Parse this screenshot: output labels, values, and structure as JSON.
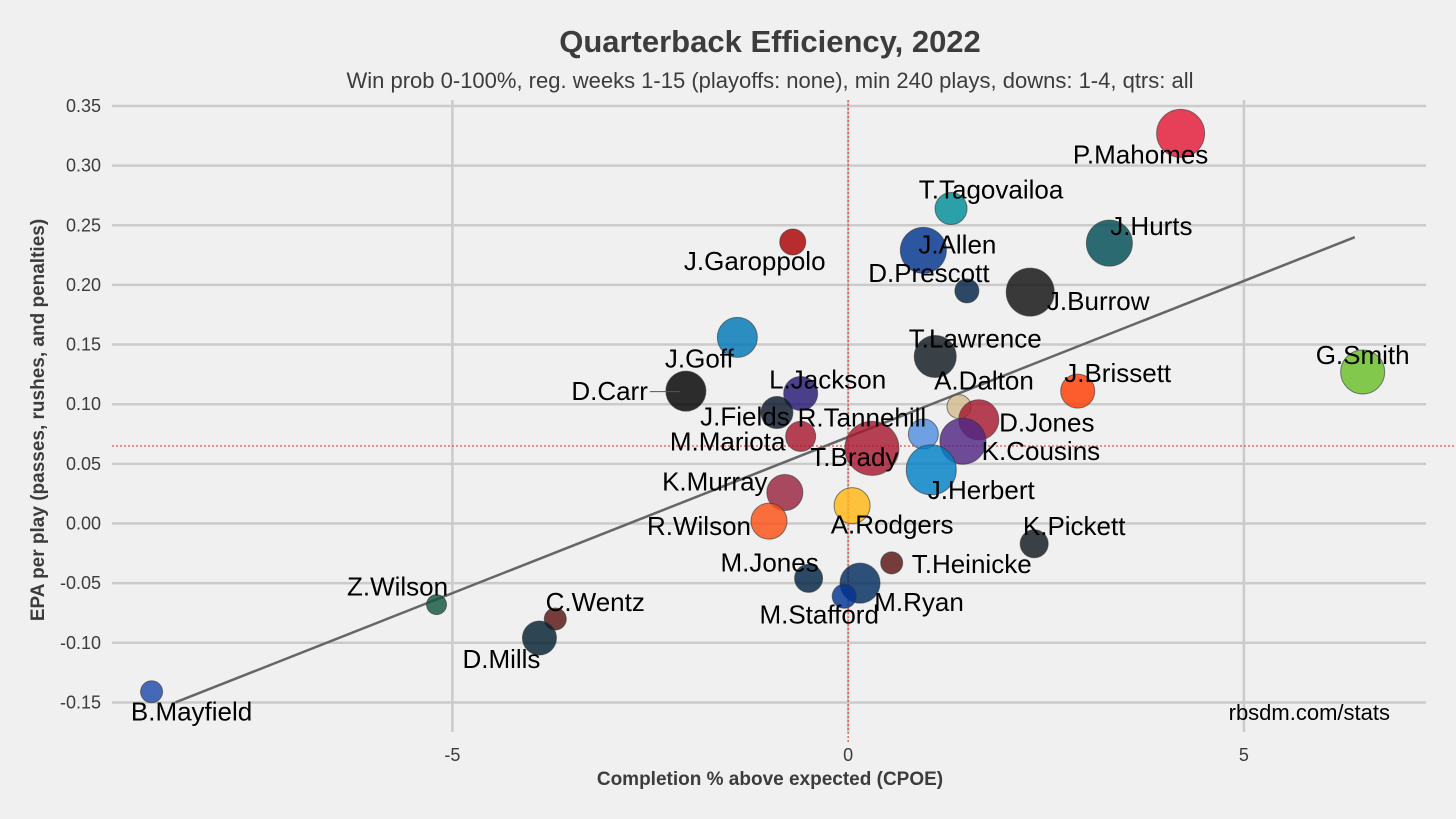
{
  "chart_data": {
    "type": "scatter",
    "title": "Quarterback Efficiency, 2022",
    "subtitle": "Win prob 0-100%, reg. weeks 1-15 (playoffs: none), min 240 plays, downs: 1-4, qtrs: all",
    "xlabel": "Completion % above expected (CPOE)",
    "ylabel": "EPA per play (passes, rushes, and penalties)",
    "source": "rbsdm.com/stats",
    "xlim": [
      -9.3,
      7.3
    ],
    "ylim": [
      -0.158,
      0.355
    ],
    "xticks": [
      {
        "value": -5,
        "label": "-5"
      },
      {
        "value": 0,
        "label": "0"
      },
      {
        "value": 5,
        "label": "5"
      }
    ],
    "yticks": [
      {
        "value": 0.35,
        "label": "0.35"
      },
      {
        "value": 0.3,
        "label": "0.30"
      },
      {
        "value": 0.25,
        "label": "0.25"
      },
      {
        "value": 0.2,
        "label": "0.20"
      },
      {
        "value": 0.15,
        "label": "0.15"
      },
      {
        "value": 0.1,
        "label": "0.10"
      },
      {
        "value": 0.05,
        "label": "0.05"
      },
      {
        "value": 0.0,
        "label": "0.00"
      },
      {
        "value": -0.05,
        "label": "-0.05"
      },
      {
        "value": -0.1,
        "label": "-0.10"
      },
      {
        "value": -0.15,
        "label": "-0.15"
      }
    ],
    "grid": true,
    "reference_lines": {
      "x_mean": 0.0,
      "y_mean": 0.065
    },
    "trend_line": {
      "x": [
        -8.5,
        6.4
      ],
      "y": [
        -0.15,
        0.24
      ]
    },
    "points": [
      {
        "name": "P.Mahomes",
        "x": 4.2,
        "y": 0.327,
        "size": 24,
        "color": "#e31837"
      },
      {
        "name": "T.Tagovailoa",
        "x": 1.3,
        "y": 0.264,
        "size": 16,
        "color": "#008e97"
      },
      {
        "name": "J.Hurts",
        "x": 3.3,
        "y": 0.235,
        "size": 23,
        "color": "#004c54"
      },
      {
        "name": "J.Allen",
        "x": 0.95,
        "y": 0.229,
        "size": 23,
        "color": "#00338d"
      },
      {
        "name": "J.Garoppolo",
        "x": -0.7,
        "y": 0.236,
        "size": 13,
        "color": "#aa0000"
      },
      {
        "name": "D.Prescott",
        "x": 1.5,
        "y": 0.195,
        "size": 12,
        "color": "#002244"
      },
      {
        "name": "J.Burrow",
        "x": 2.3,
        "y": 0.194,
        "size": 24,
        "color": "#101010"
      },
      {
        "name": "J.Goff",
        "x": -1.4,
        "y": 0.156,
        "size": 20,
        "color": "#0076b6"
      },
      {
        "name": "T.Lawrence",
        "x": 1.1,
        "y": 0.14,
        "size": 21,
        "color": "#101820"
      },
      {
        "name": "G.Smith",
        "x": 6.5,
        "y": 0.127,
        "size": 22,
        "color": "#69be28"
      },
      {
        "name": "J.Brissett",
        "x": 2.9,
        "y": 0.111,
        "size": 17,
        "color": "#ff3c00"
      },
      {
        "name": "D.Carr",
        "x": -2.05,
        "y": 0.111,
        "size": 20,
        "color": "#000000"
      },
      {
        "name": "L.Jackson",
        "x": -0.6,
        "y": 0.109,
        "size": 17,
        "color": "#241773"
      },
      {
        "name": "A.Dalton",
        "x": 1.4,
        "y": 0.098,
        "size": 12,
        "color": "#d3bc8d"
      },
      {
        "name": "J.Fields",
        "x": -0.9,
        "y": 0.093,
        "size": 16,
        "color": "#0b162a"
      },
      {
        "name": "D.Jones",
        "x": 1.65,
        "y": 0.087,
        "size": 20,
        "color": "#a71930"
      },
      {
        "name": "R.Tannehill",
        "x": 0.3,
        "y": 0.063,
        "size": 27,
        "color": "#a71930"
      },
      {
        "name": "T.Brady",
        "x": 0.95,
        "y": 0.075,
        "size": 15,
        "color": "#4f8fe0"
      },
      {
        "name": "M.Mariota",
        "x": -0.6,
        "y": 0.073,
        "size": 15,
        "color": "#a71930"
      },
      {
        "name": "K.Cousins",
        "x": 1.45,
        "y": 0.069,
        "size": 23,
        "color": "#4f2683"
      },
      {
        "name": "J.Herbert",
        "x": 1.05,
        "y": 0.045,
        "size": 25,
        "color": "#0080c6"
      },
      {
        "name": "K.Murray",
        "x": -0.8,
        "y": 0.026,
        "size": 18,
        "color": "#97233f"
      },
      {
        "name": "A.Rodgers",
        "x": 0.05,
        "y": 0.015,
        "size": 18,
        "color": "#ffb612"
      },
      {
        "name": "R.Wilson",
        "x": -1.0,
        "y": 0.002,
        "size": 18,
        "color": "#fb4f14"
      },
      {
        "name": "K.Pickett",
        "x": 2.35,
        "y": -0.017,
        "size": 14,
        "color": "#101820"
      },
      {
        "name": "T.Heinicke",
        "x": 0.55,
        "y": -0.033,
        "size": 11,
        "color": "#5a1414"
      },
      {
        "name": "M.Jones",
        "x": -0.5,
        "y": -0.046,
        "size": 14,
        "color": "#002244"
      },
      {
        "name": "M.Ryan",
        "x": 0.15,
        "y": -0.05,
        "size": 20,
        "color": "#002c5f"
      },
      {
        "name": "M.Stafford",
        "x": -0.05,
        "y": -0.061,
        "size": 12,
        "color": "#003594"
      },
      {
        "name": "Z.Wilson",
        "x": -5.2,
        "y": -0.068,
        "size": 10,
        "color": "#125740"
      },
      {
        "name": "C.Wentz",
        "x": -3.7,
        "y": -0.08,
        "size": 11,
        "color": "#5a1414"
      },
      {
        "name": "D.Mills",
        "x": -3.9,
        "y": -0.096,
        "size": 17,
        "color": "#03202f"
      },
      {
        "name": "B.Mayfield",
        "x": -8.8,
        "y": -0.141,
        "size": 11,
        "color": "#1f4aa8"
      }
    ]
  }
}
